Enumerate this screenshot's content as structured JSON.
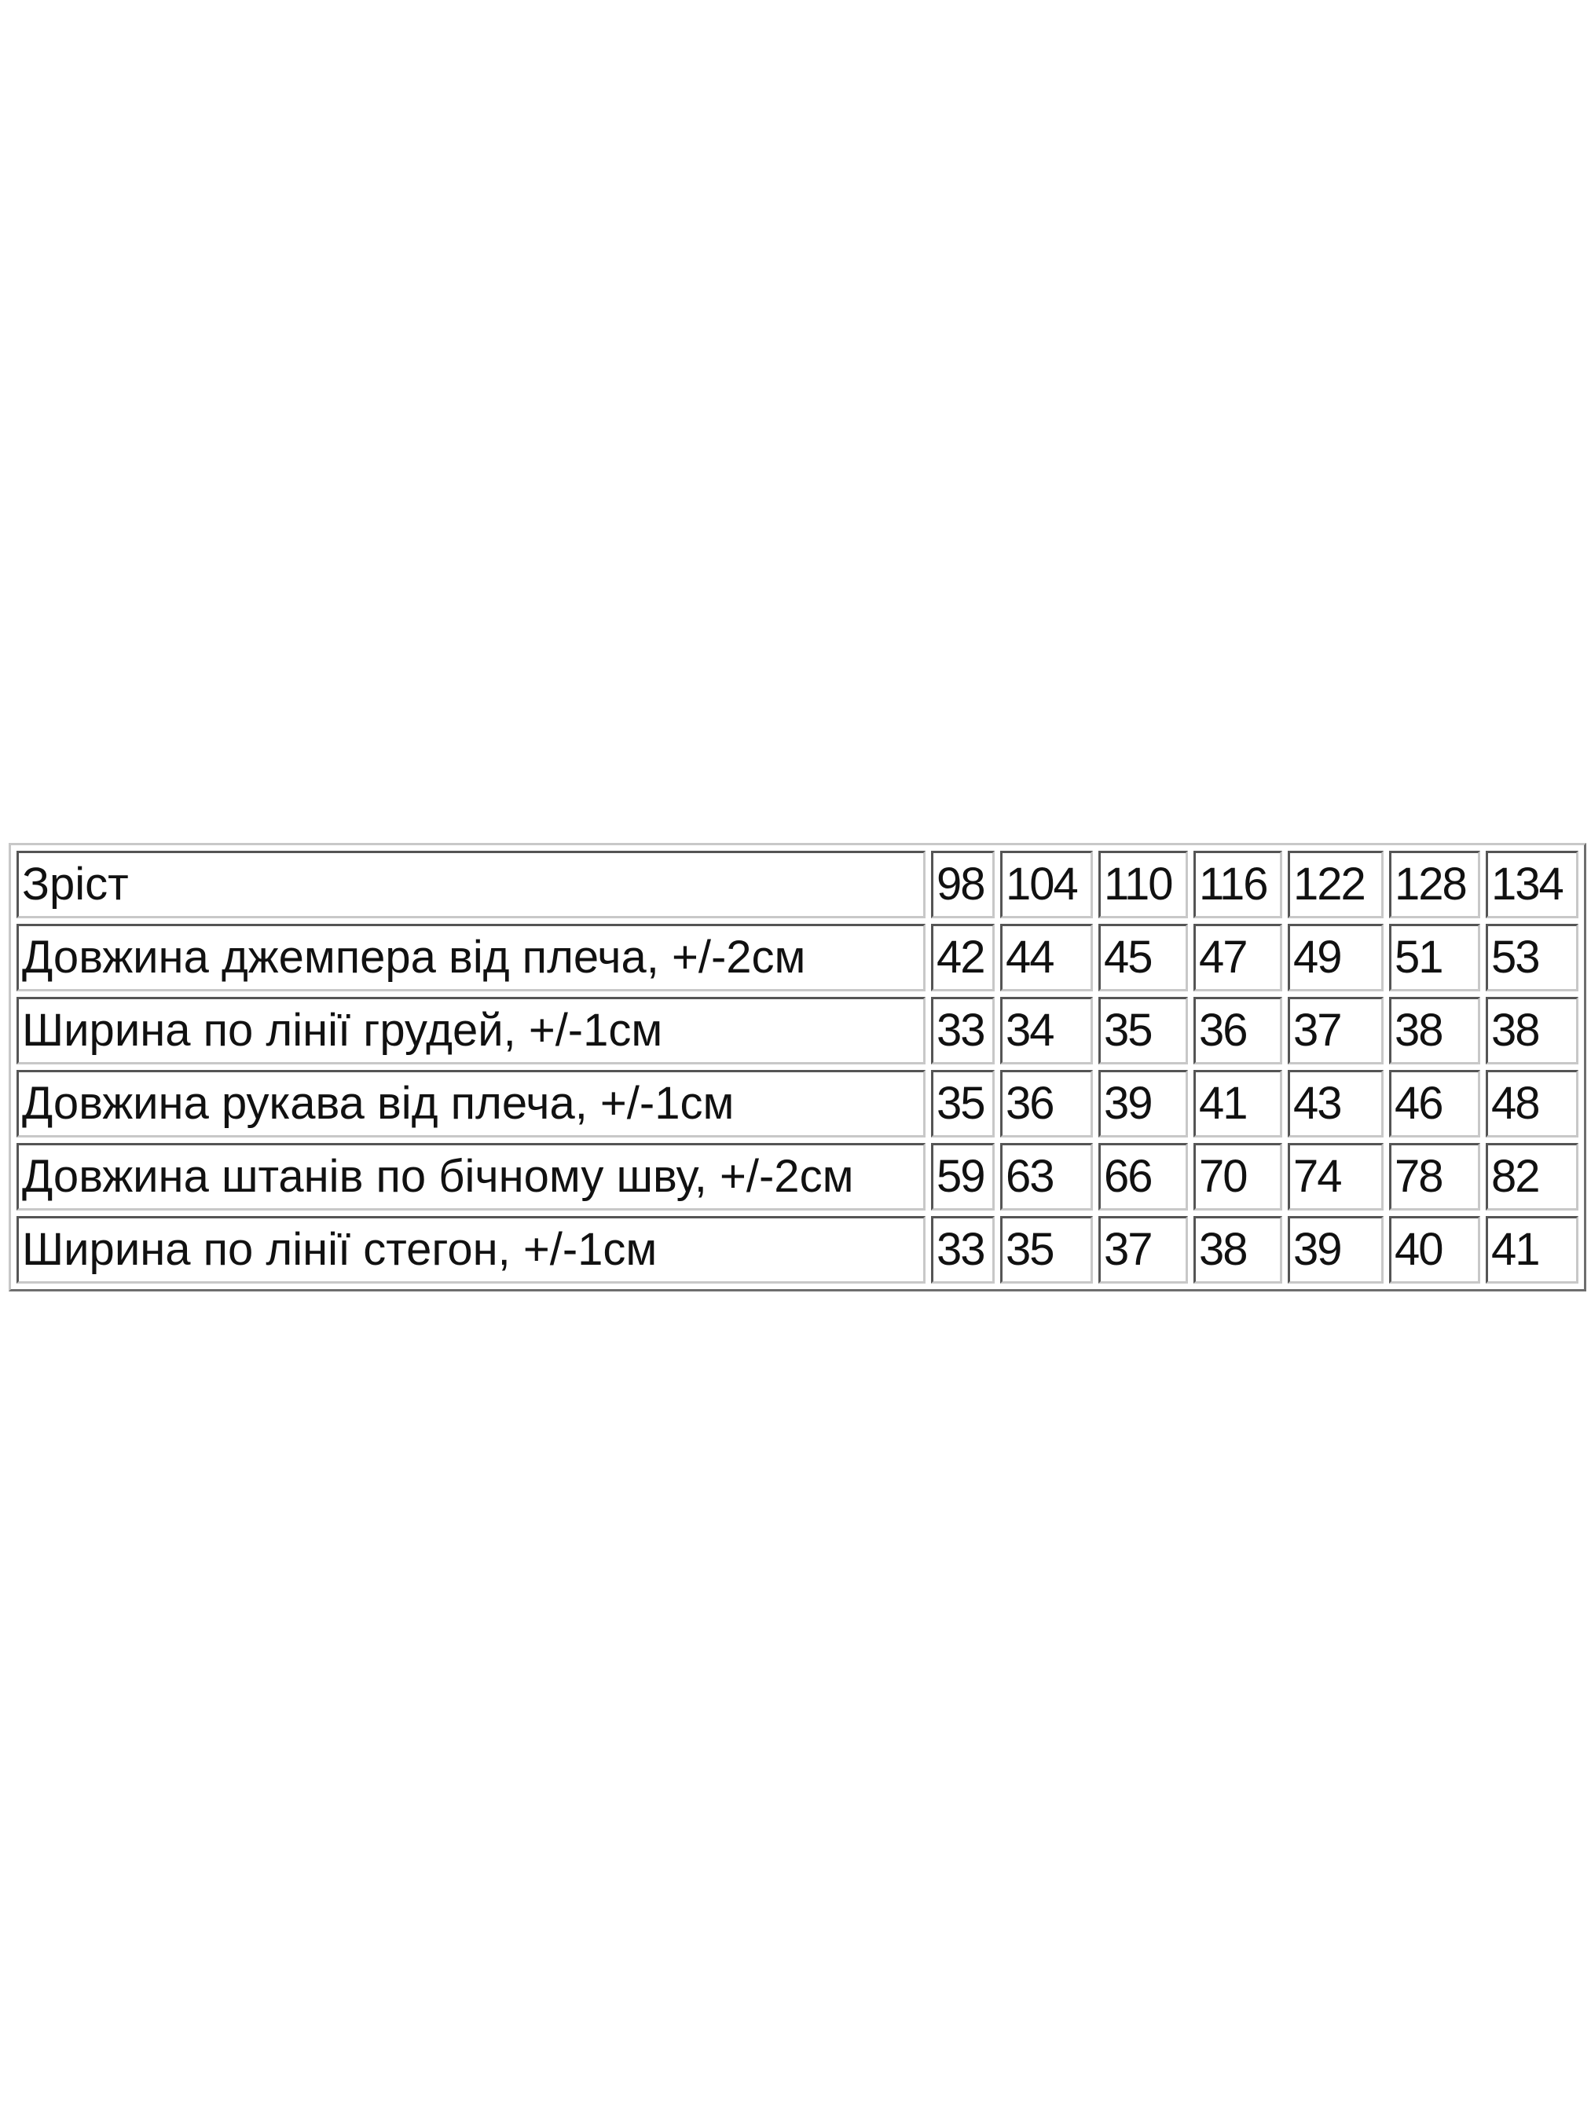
{
  "size_table": {
    "header": {
      "label": "Зріст",
      "sizes": [
        "98",
        "104",
        "110",
        "116",
        "122",
        "128",
        "134"
      ]
    },
    "rows": [
      {
        "label": "Довжина джемпера від плеча, +/-2см",
        "values": [
          "42",
          "44",
          "45",
          "47",
          "49",
          "51",
          "53"
        ]
      },
      {
        "label": "Ширина по лінії грудей, +/-1см",
        "values": [
          "33",
          "34",
          "35",
          "36",
          "37",
          "38",
          "38"
        ]
      },
      {
        "label": "Довжина рукава від плеча, +/-1см",
        "values": [
          "35",
          "36",
          "39",
          "41",
          "43",
          "46",
          "48"
        ]
      },
      {
        "label": "Довжина штанів по бічному шву, +/-2см",
        "values": [
          "59",
          "63",
          "66",
          "70",
          "74",
          "78",
          "82"
        ]
      },
      {
        "label": "Ширина по лінії стегон, +/-1см",
        "values": [
          "33",
          "35",
          "37",
          "38",
          "39",
          "40",
          "41"
        ]
      }
    ]
  }
}
